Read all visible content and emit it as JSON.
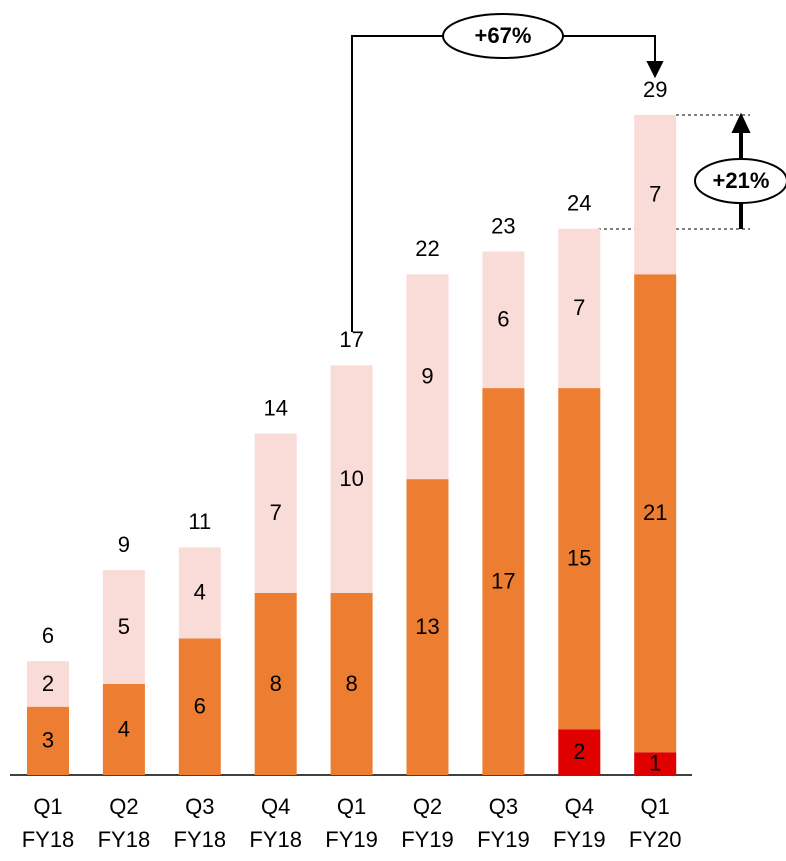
{
  "chart_data": {
    "type": "stacked-bar",
    "categories": [
      "Q1 FY18",
      "Q2 FY18",
      "Q3 FY18",
      "Q4 FY18",
      "Q1 FY19",
      "Q2 FY19",
      "Q3 FY19",
      "Q4 FY19",
      "Q1 FY20"
    ],
    "series": [
      {
        "color": "#e00000",
        "values": [
          null,
          null,
          null,
          null,
          null,
          null,
          null,
          2,
          1
        ]
      },
      {
        "color": "#ed7d31",
        "values": [
          3,
          4,
          6,
          8,
          8,
          13,
          17,
          15,
          21
        ]
      },
      {
        "color": "#f9dbd7",
        "values": [
          2,
          5,
          4,
          7,
          10,
          9,
          6,
          7,
          7
        ]
      }
    ],
    "totals": [
      6,
      9,
      11,
      14,
      17,
      22,
      23,
      24,
      29
    ],
    "annotations": [
      "+67%",
      "+21%"
    ]
  }
}
